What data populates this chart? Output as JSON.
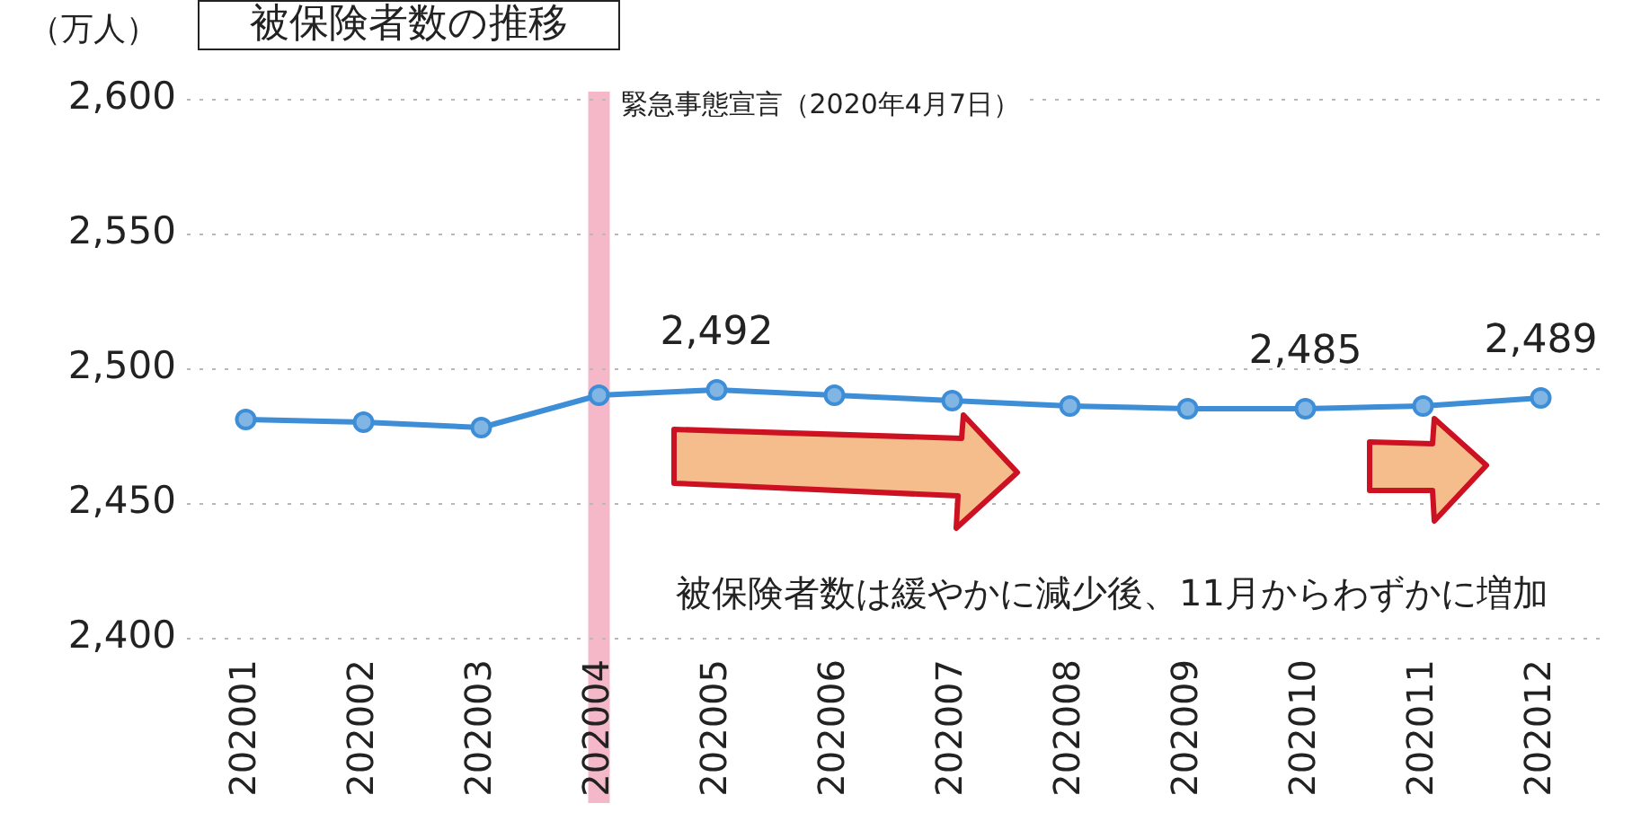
{
  "chart_data": {
    "type": "line",
    "title": "被保険者数の推移",
    "ylabel": "（万人）",
    "categories": [
      "202001",
      "202002",
      "202003",
      "202004",
      "202005",
      "202006",
      "202007",
      "202008",
      "202009",
      "202010",
      "202011",
      "202012"
    ],
    "series": [
      {
        "color": "#3d8ed6",
        "values": [
          2481,
          2480,
          2478,
          2490,
          2492,
          2490,
          2488,
          2486,
          2485,
          2485,
          2486,
          2489
        ],
        "value_labels": [
          null,
          null,
          null,
          null,
          "2,492",
          null,
          null,
          null,
          null,
          "2,485",
          null,
          "2,489"
        ]
      }
    ],
    "ylim": [
      2400,
      2600
    ],
    "yticks": [
      {
        "value": 2400,
        "label": "2,400"
      },
      {
        "value": 2450,
        "label": "2,450"
      },
      {
        "value": 2500,
        "label": "2,500"
      },
      {
        "value": 2550,
        "label": "2,550"
      },
      {
        "value": 2600,
        "label": "2,600"
      }
    ],
    "grid": "y",
    "marker": "circle",
    "line_style": "solid",
    "ref_lines": [
      {
        "axis": "x",
        "value": "202004",
        "label": "緊急事態宣言（2020年4月7日）",
        "color": "#f5b8c8"
      }
    ],
    "annotations": [
      "被保険者数は緩やかに減少後、11月からわずかに増加"
    ]
  }
}
